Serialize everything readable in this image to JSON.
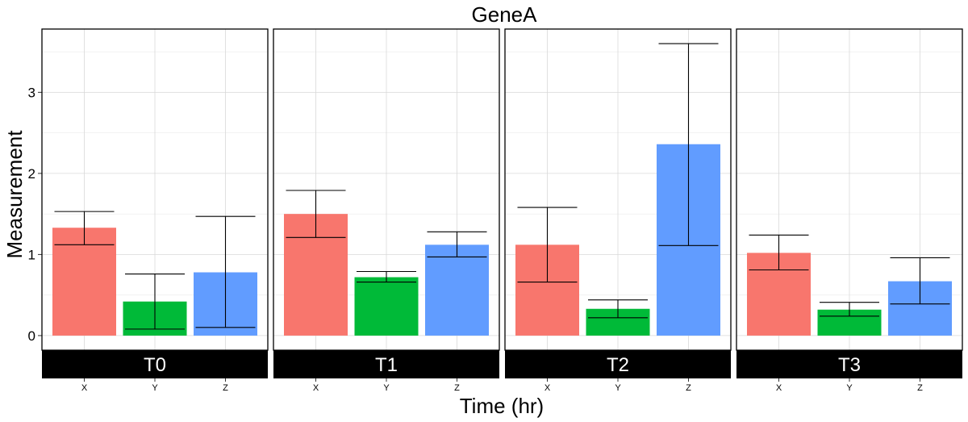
{
  "chart_data": {
    "type": "bar",
    "title": "GeneA",
    "xlabel": "Time (hr)",
    "ylabel": "Measurement",
    "ylim": [
      -0.18,
      3.78
    ],
    "yticks": [
      0,
      1,
      2,
      3
    ],
    "grid": true,
    "facet_position": "bottom",
    "categories": [
      "X",
      "Y",
      "Z"
    ],
    "colors": {
      "X": "#F8766D",
      "Y": "#00BA38",
      "Z": "#619CFF"
    },
    "facets": [
      {
        "label": "T0",
        "bars": [
          {
            "category": "X",
            "value": 1.33,
            "err_low": 1.12,
            "err_high": 1.53
          },
          {
            "category": "Y",
            "value": 0.42,
            "err_low": 0.08,
            "err_high": 0.76
          },
          {
            "category": "Z",
            "value": 0.78,
            "err_low": 0.1,
            "err_high": 1.47
          }
        ]
      },
      {
        "label": "T1",
        "bars": [
          {
            "category": "X",
            "value": 1.5,
            "err_low": 1.21,
            "err_high": 1.79
          },
          {
            "category": "Y",
            "value": 0.72,
            "err_low": 0.66,
            "err_high": 0.79
          },
          {
            "category": "Z",
            "value": 1.12,
            "err_low": 0.97,
            "err_high": 1.28
          }
        ]
      },
      {
        "label": "T2",
        "bars": [
          {
            "category": "X",
            "value": 1.12,
            "err_low": 0.66,
            "err_high": 1.58
          },
          {
            "category": "Y",
            "value": 0.33,
            "err_low": 0.22,
            "err_high": 0.44
          },
          {
            "category": "Z",
            "value": 2.36,
            "err_low": 1.11,
            "err_high": 3.6
          }
        ]
      },
      {
        "label": "T3",
        "bars": [
          {
            "category": "X",
            "value": 1.02,
            "err_low": 0.81,
            "err_high": 1.24
          },
          {
            "category": "Y",
            "value": 0.32,
            "err_low": 0.24,
            "err_high": 0.41
          },
          {
            "category": "Z",
            "value": 0.67,
            "err_low": 0.39,
            "err_high": 0.96
          }
        ]
      }
    ]
  }
}
